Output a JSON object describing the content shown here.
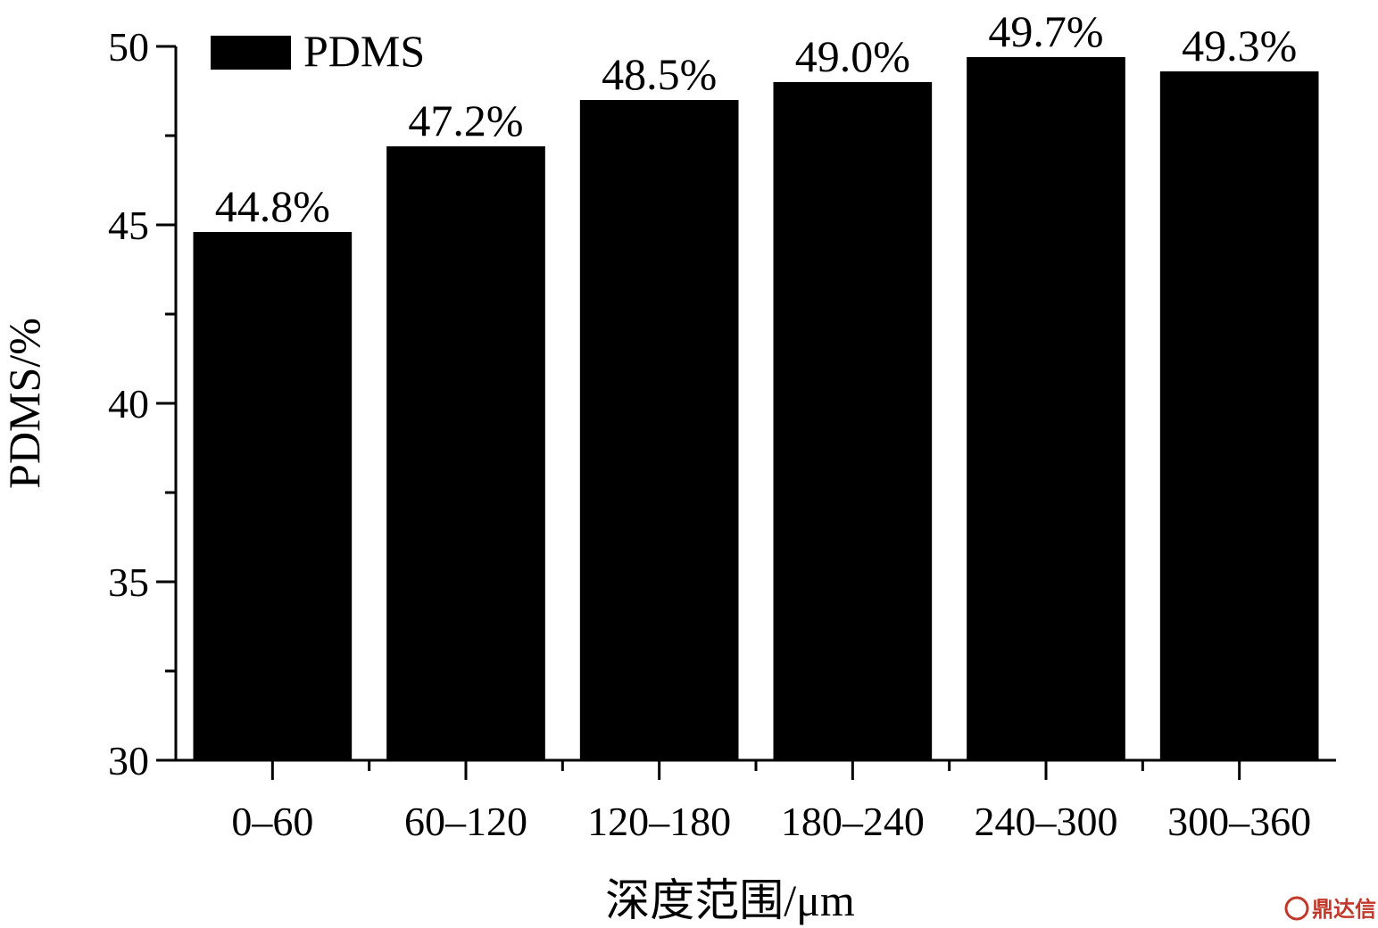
{
  "chart_data": {
    "type": "bar",
    "categories": [
      "0–60",
      "60–120",
      "120–180",
      "180–240",
      "240–300",
      "300–360"
    ],
    "series": [
      {
        "name": "PDMS",
        "values": [
          44.8,
          47.2,
          48.5,
          49.0,
          49.7,
          49.3
        ],
        "color": "#000000"
      }
    ],
    "data_labels": [
      "44.8%",
      "47.2%",
      "48.5%",
      "49.0%",
      "49.7%",
      "49.3%"
    ],
    "xlabel": "深度范围/μm",
    "ylabel": "PDMS/%",
    "ylim": [
      30,
      50
    ],
    "yticks": [
      "30",
      "35",
      "40",
      "45",
      "50"
    ],
    "grid": false,
    "legend_position": "top-left"
  },
  "watermark": {
    "text": "鼎达信",
    "color": "#c0392b"
  }
}
